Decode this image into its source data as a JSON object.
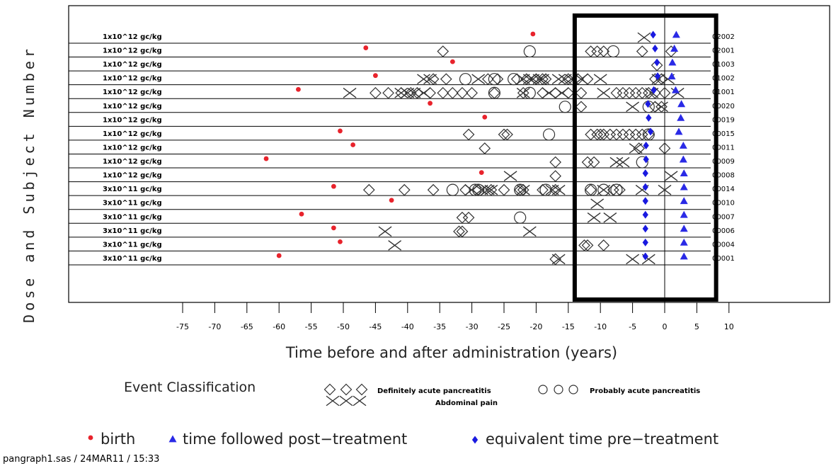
{
  "chart_data": {
    "type": "scatter",
    "ylabel": "Dose and Subject Number",
    "xlabel": "Time before and after administration (years)",
    "xlim": [
      -80,
      10
    ],
    "xticks": [
      -75,
      -70,
      -65,
      -60,
      -55,
      -50,
      -45,
      -40,
      -35,
      -30,
      -25,
      -20,
      -15,
      -10,
      -5,
      0,
      5,
      10
    ],
    "highlight_box_x": [
      -14,
      8
    ],
    "reference_line_x": 0,
    "subjects": [
      {
        "dose": "1x10^12 gc/kg",
        "id": "02002",
        "birth": -20.5,
        "post": 1.8,
        "pre": -1.8,
        "diamonds": [],
        "circles": [],
        "crosses": [
          -3.2
        ]
      },
      {
        "dose": "1x10^12 gc/kg",
        "id": "02001",
        "birth": -46.5,
        "post": 1.5,
        "pre": -1.5,
        "diamonds": [
          -34.5,
          -11.5,
          -10.5,
          -9.5,
          -3.5,
          1.0
        ],
        "circles": [
          -21,
          -8
        ],
        "crosses": []
      },
      {
        "dose": "1x10^12 gc/kg",
        "id": "01003",
        "birth": -33,
        "post": 1.2,
        "pre": -1.2,
        "diamonds": [
          -1.2
        ],
        "circles": [],
        "crosses": []
      },
      {
        "dose": "1x10^12 gc/kg",
        "id": "01002",
        "birth": -45,
        "post": 1.1,
        "pre": -1.1,
        "diamonds": [
          -36,
          -34,
          -27.5,
          -26,
          -23,
          -21.5,
          -20,
          -19,
          -18.5,
          -15,
          -13.5,
          -12,
          -1.5,
          -0.5
        ],
        "circles": [
          -31,
          -26.5,
          -23.5
        ],
        "crosses": [
          -37.5,
          -36.5,
          -29,
          -22,
          -21,
          -20.5,
          -19.5,
          -19,
          -16.5,
          -15.5,
          -14.5,
          -13,
          -10,
          -1,
          0.5
        ]
      },
      {
        "dose": "1x10^12 gc/kg",
        "id": "01001",
        "birth": -57,
        "post": 1.7,
        "pre": -1.7,
        "diamonds": [
          -45,
          -43,
          -41,
          -39.5,
          -38.5,
          -36.5,
          -34.5,
          -33,
          -31.5,
          -30,
          -26.5,
          -22,
          -19,
          -17,
          -15,
          -13,
          -7.5,
          -6.5,
          -5.5,
          -4.5,
          -3.5,
          -2.5,
          -1.5,
          0
        ],
        "circles": [
          -26.5,
          -21
        ],
        "crosses": [
          -49,
          -41,
          -40,
          -39,
          -37.5,
          -22,
          -18,
          -16,
          -9.5,
          -2,
          2
        ]
      },
      {
        "dose": "1x10^12 gc/kg",
        "id": "00020",
        "birth": -36.5,
        "post": 2.6,
        "pre": -2.6,
        "diamonds": [
          -13,
          -1.5,
          -0.5
        ],
        "circles": [
          -15.5,
          -2.5
        ],
        "crosses": [
          -5,
          -0.5
        ]
      },
      {
        "dose": "1x10^12 gc/kg",
        "id": "00019",
        "birth": -28,
        "post": 2.5,
        "pre": -2.5,
        "diamonds": [],
        "circles": [],
        "crosses": []
      },
      {
        "dose": "1x10^12 gc/kg",
        "id": "00015",
        "birth": -50.5,
        "post": 2.2,
        "pre": -2.2,
        "diamonds": [
          -30.5,
          -25,
          -24.5,
          -11.5,
          -10.5,
          -10,
          -9.5,
          -8.5,
          -7.5,
          -6.5,
          -5.5,
          -4.5,
          -3.5,
          -2.5
        ],
        "circles": [
          -18,
          -2.5
        ],
        "crosses": []
      },
      {
        "dose": "1x10^12 gc/kg",
        "id": "00011",
        "birth": -48.5,
        "post": 2.9,
        "pre": -2.9,
        "diamonds": [
          -28,
          -4,
          0
        ],
        "circles": [],
        "crosses": [
          -4.5
        ]
      },
      {
        "dose": "1x10^12 gc/kg",
        "id": "00009",
        "birth": -62,
        "post": 2.9,
        "pre": -2.9,
        "diamonds": [
          -17,
          -12,
          -11
        ],
        "circles": [
          -3.5
        ],
        "crosses": [
          -7.5,
          -6.5
        ]
      },
      {
        "dose": "1x10^12 gc/kg",
        "id": "00008",
        "birth": -28.5,
        "post": 3.0,
        "pre": -3.0,
        "diamonds": [
          -17
        ],
        "circles": [],
        "crosses": [
          -24,
          1
        ]
      },
      {
        "dose": "3x10^11 gc/kg",
        "id": "00014",
        "birth": -51.5,
        "post": 3.0,
        "pre": -3.0,
        "diamonds": [
          -46,
          -40.5,
          -36,
          -31,
          -29,
          -27,
          -25,
          -22.5,
          -22,
          -19,
          -17,
          -11.5,
          -8,
          -7
        ],
        "circles": [
          -33,
          -29.5,
          -29,
          -22.5,
          -18.5,
          -11.5,
          -9.5,
          -7.5
        ],
        "crosses": [
          -30,
          -28.5,
          -27.5,
          -27,
          -22,
          -17.5,
          -16.5,
          -9.5,
          -3.5,
          0
        ]
      },
      {
        "dose": "3x10^11 gc/kg",
        "id": "00010",
        "birth": -42.5,
        "post": 3.0,
        "pre": -3.0,
        "diamonds": [],
        "circles": [],
        "crosses": [
          -10.5
        ]
      },
      {
        "dose": "3x10^11 gc/kg",
        "id": "00007",
        "birth": -56.5,
        "post": 3.0,
        "pre": -3.0,
        "diamonds": [
          -31.5,
          -30.5
        ],
        "circles": [
          -22.5
        ],
        "crosses": [
          -11,
          -8.5
        ]
      },
      {
        "dose": "3x10^11 gc/kg",
        "id": "00006",
        "birth": -51.5,
        "post": 3.0,
        "pre": -3.0,
        "diamonds": [
          -32,
          -31.5
        ],
        "circles": [],
        "crosses": [
          -43.5,
          -21
        ]
      },
      {
        "dose": "3x10^11 gc/kg",
        "id": "00004",
        "birth": -50.5,
        "post": 3.0,
        "pre": -3.0,
        "diamonds": [
          -12.5,
          -12,
          -9.5
        ],
        "circles": [],
        "crosses": [
          -42
        ]
      },
      {
        "dose": "3x10^11 gc/kg",
        "id": "00001",
        "birth": -60,
        "post": 3.0,
        "pre": -3.0,
        "diamonds": [
          -17
        ],
        "circles": [],
        "crosses": [
          -16.5,
          -5,
          -2.5
        ]
      }
    ],
    "event_legend_title": "Event Classification",
    "event_legend": {
      "diamond": "Definitely acute pancreatitis",
      "circle": "Probably acute pancreatitis",
      "cross": "Abdominal pain"
    },
    "marker_legend": {
      "birth": "birth",
      "post": "time followed post−treatment",
      "pre": "equivalent time pre−treatment"
    },
    "colors": {
      "birth": "#e8232c",
      "post": "#2a2ae6",
      "pre": "#1a1ae0",
      "line": "#000000"
    },
    "footer": "pangraph1.sas / 24MAR11 / 15:33"
  }
}
